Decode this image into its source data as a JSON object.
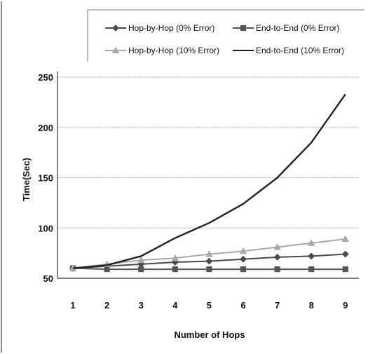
{
  "chart_data": {
    "type": "line",
    "title": "",
    "xlabel": "Number of Hops",
    "ylabel": "Time(Sec)",
    "x": [
      1,
      2,
      3,
      4,
      5,
      6,
      7,
      8,
      9
    ],
    "ylim": [
      50,
      250
    ],
    "yticks": [
      50,
      100,
      150,
      200,
      250
    ],
    "grid": true,
    "legend_position": "top",
    "series": [
      {
        "name": "Hop-by-Hop (0% Error)",
        "values": [
          60,
          62,
          64,
          66,
          67,
          69,
          71,
          72,
          74
        ],
        "color": "#4a4a4a",
        "marker": "diamond"
      },
      {
        "name": "End-to-End (0% Error)",
        "values": [
          60,
          59,
          59,
          59,
          59,
          59,
          59,
          59,
          59
        ],
        "color": "#555555",
        "marker": "square"
      },
      {
        "name": "Hop-by-Hop (10% Error)",
        "values": [
          60,
          64,
          68,
          70,
          74,
          77,
          81,
          85,
          89
        ],
        "color": "#a8a8a8",
        "marker": "triangle"
      },
      {
        "name": "End-to-End (10% Error)",
        "values": [
          60,
          63,
          72,
          90,
          105,
          124,
          150,
          185,
          233
        ],
        "color": "#222222",
        "marker": "none"
      }
    ]
  }
}
